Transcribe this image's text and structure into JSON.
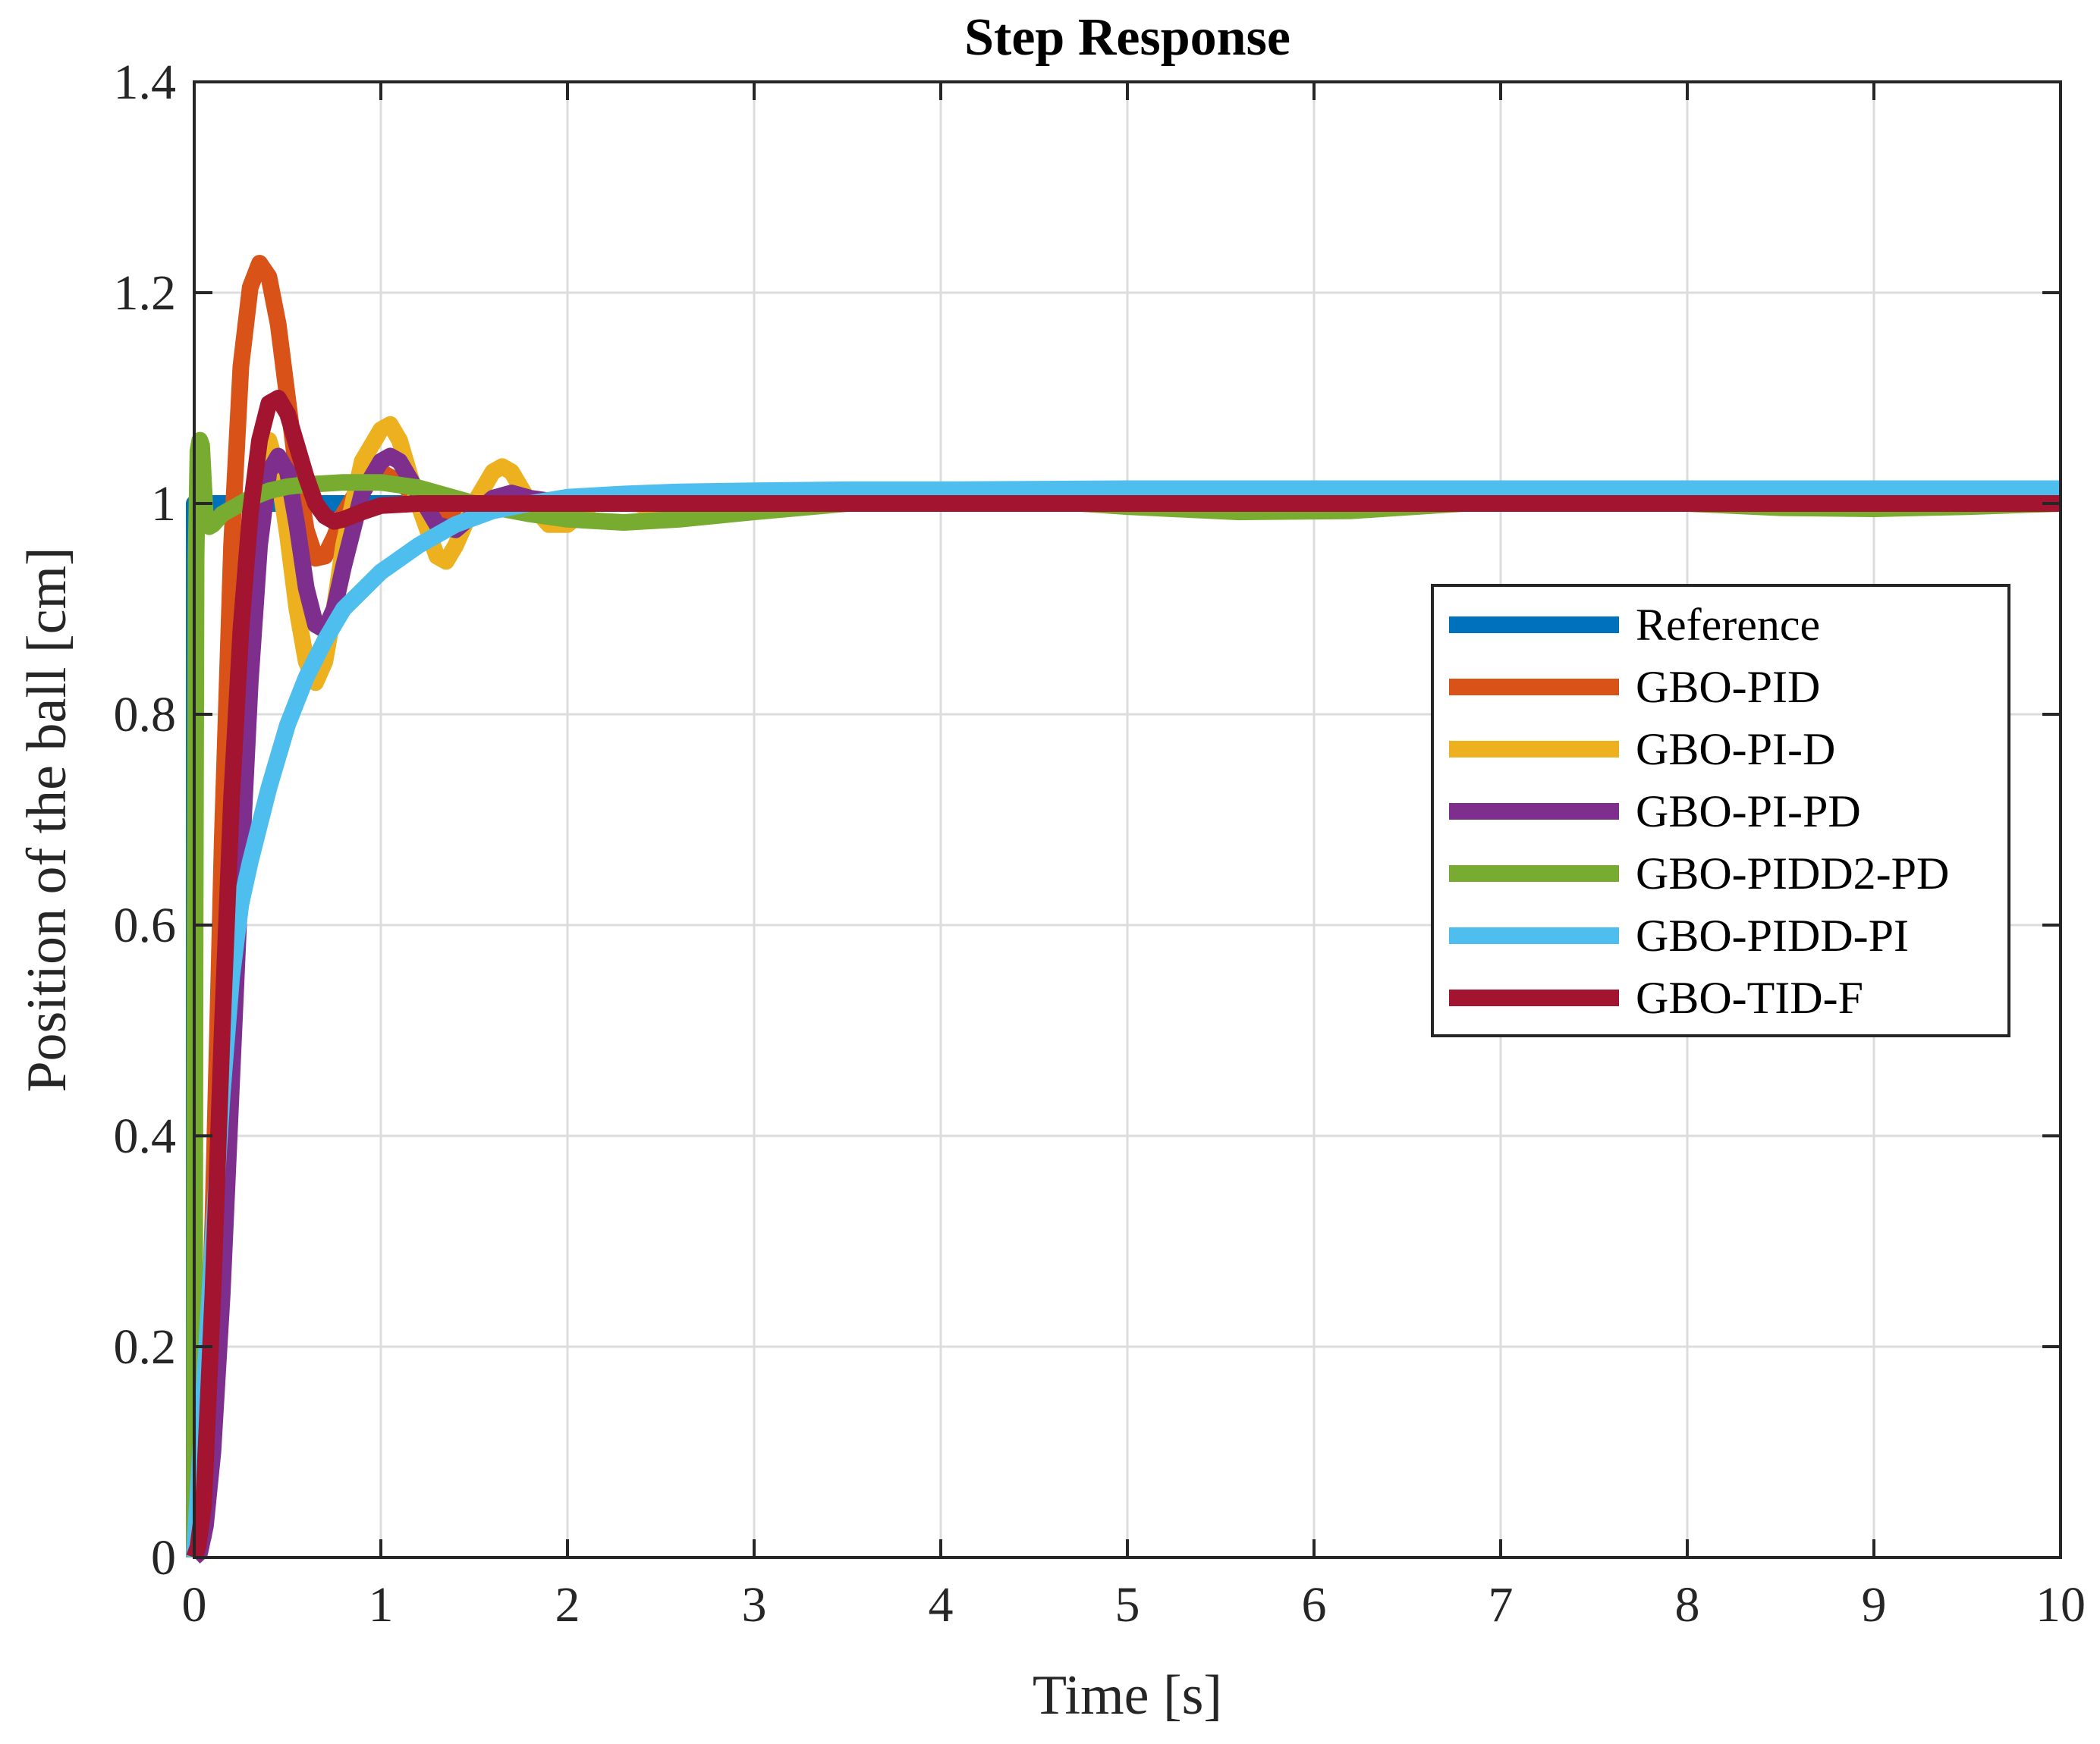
{
  "chart_data": {
    "type": "line",
    "title": "Step Response",
    "xlabel": "Time [s]",
    "ylabel": "Position of the ball [cm]",
    "xlim": [
      0,
      10
    ],
    "ylim": [
      0,
      1.4
    ],
    "xticks": [
      0,
      1,
      2,
      3,
      4,
      5,
      6,
      7,
      8,
      9,
      10
    ],
    "xtick_labels": [
      "0",
      "1",
      "2",
      "3",
      "4",
      "5",
      "6",
      "7",
      "8",
      "9",
      "10"
    ],
    "yticks": [
      0,
      0.2,
      0.4,
      0.6,
      0.8,
      1,
      1.2,
      1.4
    ],
    "ytick_labels": [
      "0",
      "0.2",
      "0.4",
      "0.6",
      "0.8",
      "1",
      "1.2",
      "1.4"
    ],
    "grid": true,
    "legend_position": "right",
    "series": [
      {
        "name": "Reference",
        "color": "#0072BD",
        "x": [
          0,
          0.0001,
          10
        ],
        "y": [
          0,
          1,
          1
        ]
      },
      {
        "name": "GBO-PID",
        "color": "#D95319",
        "x": [
          0,
          0.05,
          0.1,
          0.15,
          0.2,
          0.25,
          0.3,
          0.35,
          0.4,
          0.45,
          0.5,
          0.55,
          0.6,
          0.65,
          0.7,
          0.75,
          0.8,
          0.9,
          1.0,
          1.1,
          1.2,
          1.4,
          1.6,
          1.8,
          2.0,
          2.5,
          3,
          4,
          5,
          6,
          7,
          8,
          9,
          10
        ],
        "y": [
          0,
          0.05,
          0.32,
          0.68,
          0.96,
          1.13,
          1.205,
          1.228,
          1.215,
          1.17,
          1.1,
          1.03,
          0.975,
          0.948,
          0.95,
          0.968,
          0.99,
          1.02,
          1.03,
          1.02,
          1.005,
          0.99,
          0.995,
          1.003,
          1.002,
          0.999,
          1.0,
          1.0,
          1.0,
          1.0,
          1.0,
          1.0,
          1.0,
          1.0
        ]
      },
      {
        "name": "GBO-PI-D",
        "color": "#EDB120",
        "x": [
          0,
          0.05,
          0.1,
          0.15,
          0.2,
          0.25,
          0.3,
          0.35,
          0.4,
          0.45,
          0.5,
          0.55,
          0.6,
          0.65,
          0.7,
          0.75,
          0.8,
          0.9,
          1.0,
          1.05,
          1.1,
          1.2,
          1.3,
          1.35,
          1.4,
          1.5,
          1.6,
          1.65,
          1.7,
          1.8,
          1.9,
          2.0,
          2.1,
          2.2,
          2.3,
          2.4,
          2.6,
          3,
          4,
          5,
          6,
          7,
          8,
          9,
          10
        ],
        "y": [
          0,
          0.02,
          0.15,
          0.38,
          0.62,
          0.82,
          0.96,
          1.04,
          1.06,
          1.03,
          0.97,
          0.9,
          0.85,
          0.83,
          0.85,
          0.9,
          0.96,
          1.04,
          1.07,
          1.075,
          1.06,
          1.0,
          0.95,
          0.945,
          0.96,
          1.0,
          1.03,
          1.035,
          1.03,
          1.0,
          0.98,
          0.98,
          0.995,
          1.008,
          1.005,
          0.998,
          1.0,
          1.0,
          1.0,
          1.0,
          1.0,
          1.0,
          1.0,
          1.0,
          1.0
        ]
      },
      {
        "name": "GBO-PI-PD",
        "color": "#7E2F8E",
        "x": [
          0,
          0.03,
          0.06,
          0.1,
          0.15,
          0.2,
          0.25,
          0.3,
          0.35,
          0.4,
          0.45,
          0.5,
          0.55,
          0.6,
          0.65,
          0.7,
          0.75,
          0.8,
          0.9,
          1.0,
          1.05,
          1.1,
          1.2,
          1.3,
          1.4,
          1.5,
          1.6,
          1.7,
          1.8,
          2.0,
          2.5,
          3,
          4,
          5,
          6,
          7,
          8,
          9,
          10
        ],
        "y": [
          0,
          0.005,
          0.03,
          0.1,
          0.25,
          0.45,
          0.65,
          0.83,
          0.96,
          1.03,
          1.045,
          1.03,
          0.98,
          0.92,
          0.885,
          0.88,
          0.9,
          0.94,
          1.01,
          1.04,
          1.045,
          1.04,
          1.01,
          0.98,
          0.975,
          0.99,
          1.005,
          1.01,
          1.005,
          1.0,
          1.0,
          1.0,
          1.0,
          1.0,
          1.0,
          1.0,
          1.0,
          1.0,
          1.0
        ]
      },
      {
        "name": "GBO-PIDD2-PD",
        "color": "#77AC30",
        "x": [
          0,
          0.005,
          0.01,
          0.02,
          0.03,
          0.04,
          0.05,
          0.06,
          0.08,
          0.1,
          0.15,
          0.2,
          0.3,
          0.4,
          0.5,
          0.6,
          0.8,
          1.0,
          1.2,
          1.5,
          1.8,
          2.0,
          2.3,
          2.6,
          3.0,
          3.5,
          4.0,
          4.5,
          5.0,
          5.6,
          6.2,
          6.8,
          7.2,
          7.6,
          8.0,
          8.5,
          9.0,
          9.5,
          10
        ],
        "y": [
          0,
          0.6,
          0.95,
          1.05,
          1.06,
          1.055,
          1.02,
          0.985,
          0.978,
          0.98,
          0.99,
          0.995,
          1.005,
          1.012,
          1.016,
          1.018,
          1.02,
          1.02,
          1.015,
          1.0,
          0.99,
          0.985,
          0.982,
          0.985,
          0.992,
          1.0,
          1.005,
          1.003,
          0.997,
          0.992,
          0.993,
          1.0,
          1.004,
          1.004,
          1.0,
          0.996,
          0.995,
          0.997,
          1.0
        ]
      },
      {
        "name": "GBO-PIDD-PI",
        "color": "#4DBEEE",
        "x": [
          0,
          0.05,
          0.1,
          0.15,
          0.2,
          0.25,
          0.3,
          0.4,
          0.5,
          0.6,
          0.7,
          0.8,
          1.0,
          1.2,
          1.4,
          1.6,
          1.8,
          2.0,
          2.3,
          2.6,
          3.0,
          3.5,
          4.0,
          5.0,
          6.0,
          7.0,
          8.0,
          9.0,
          10
        ],
        "y": [
          0,
          0.15,
          0.3,
          0.44,
          0.55,
          0.62,
          0.66,
          0.73,
          0.79,
          0.835,
          0.87,
          0.9,
          0.935,
          0.96,
          0.98,
          0.993,
          1.0,
          1.006,
          1.009,
          1.011,
          1.012,
          1.013,
          1.013,
          1.014,
          1.014,
          1.014,
          1.014,
          1.014,
          1.014
        ]
      },
      {
        "name": "GBO-TID-F",
        "color": "#A2142F",
        "x": [
          0,
          0.02,
          0.05,
          0.1,
          0.15,
          0.2,
          0.25,
          0.3,
          0.35,
          0.4,
          0.45,
          0.5,
          0.55,
          0.6,
          0.65,
          0.7,
          0.75,
          0.8,
          0.9,
          1.0,
          1.2,
          1.5,
          2.0,
          3,
          4,
          5,
          6,
          7,
          8,
          9,
          10
        ],
        "y": [
          0,
          0.01,
          0.05,
          0.25,
          0.5,
          0.72,
          0.88,
          0.99,
          1.06,
          1.095,
          1.1,
          1.085,
          1.055,
          1.025,
          1.0,
          0.988,
          0.983,
          0.985,
          0.992,
          0.998,
          1.0,
          1.0,
          1.0,
          1.0,
          1.0,
          1.0,
          1.0,
          1.0,
          1.0,
          1.0,
          1.0
        ]
      }
    ]
  }
}
